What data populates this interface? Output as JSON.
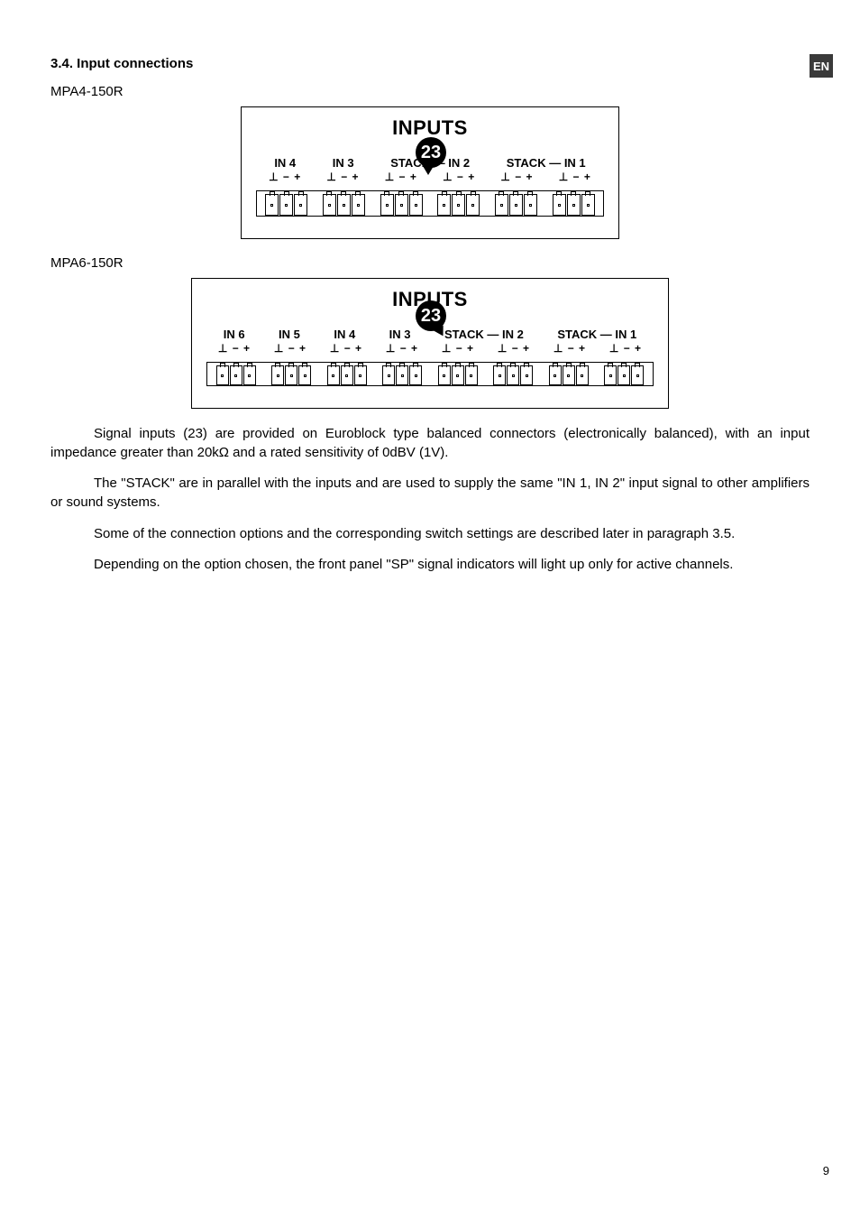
{
  "lang_badge": "EN",
  "section_title": "3.4. Input connections",
  "model1": "MPA4-150R",
  "model2": "MPA6-150R",
  "callout_number": "23",
  "diagram1": {
    "title": "INPUTS",
    "labels": [
      "IN 4",
      "IN 3",
      "STACK",
      "IN 2",
      "STACK",
      "IN 1"
    ],
    "stack_links": [
      [
        2,
        3
      ],
      [
        4,
        5
      ]
    ],
    "polarity": "⊥ − +",
    "blocks": 6,
    "terms_per_block": 3
  },
  "diagram2": {
    "title": "INPUTS",
    "labels": [
      "IN 6",
      "IN 5",
      "IN 4",
      "IN 3",
      "STACK",
      "IN 2",
      "STACK",
      "IN 1"
    ],
    "stack_links": [
      [
        4,
        5
      ],
      [
        6,
        7
      ]
    ],
    "polarity": "⊥ − +",
    "blocks": 8,
    "terms_per_block": 3
  },
  "paragraphs": [
    "Signal inputs (23) are provided on Euroblock type balanced connectors (electronically balanced), with an input impedance greater than 20kΩ and a rated sensitivity of 0dBV (1V).",
    "The \"STACK\" are in parallel with the inputs and are used to supply the same \"IN 1, IN 2\" input signal to other amplifiers or sound systems.",
    "Some of the connection options and the corresponding switch settings are described later in paragraph 3.5.",
    "Depending on the option chosen, the front panel \"SP\" signal indicators will light up only for active channels."
  ],
  "page_number": "9"
}
